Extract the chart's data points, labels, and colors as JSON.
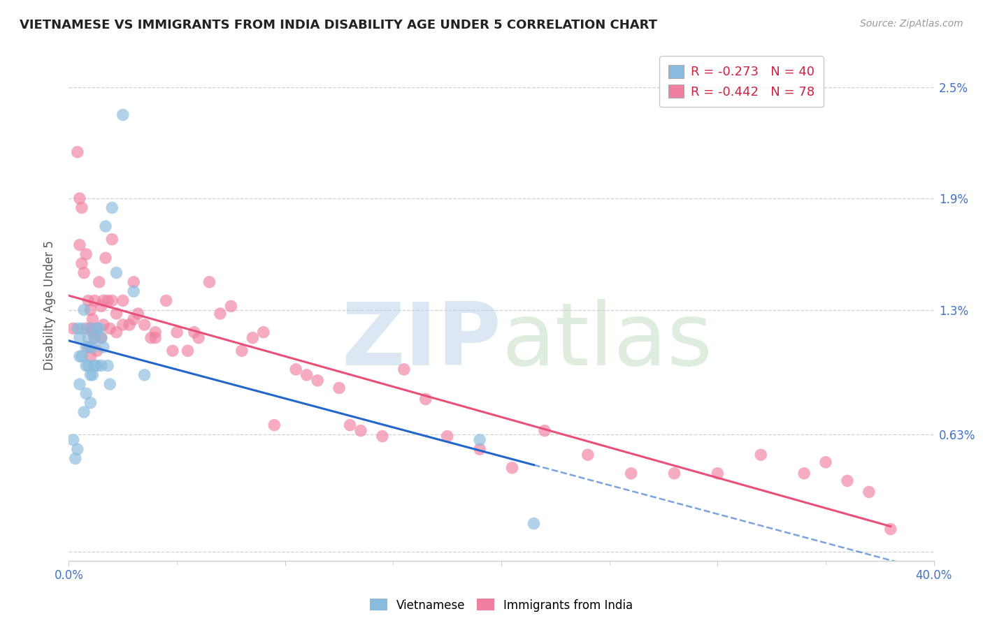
{
  "title": "VIETNAMESE VS IMMIGRANTS FROM INDIA DISABILITY AGE UNDER 5 CORRELATION CHART",
  "source": "Source: ZipAtlas.com",
  "ylabel": "Disability Age Under 5",
  "xlim": [
    0.0,
    0.4
  ],
  "ylim": [
    -0.0005,
    0.027
  ],
  "ytick_positions": [
    0.0,
    0.0063,
    0.013,
    0.019,
    0.025
  ],
  "ytick_labels": [
    "",
    "0.63%",
    "1.3%",
    "1.9%",
    "2.5%"
  ],
  "xtick_positions": [
    0.0,
    0.1,
    0.2,
    0.3,
    0.4
  ],
  "xtick_labels_visible": [
    "0.0%",
    "",
    "",
    "",
    "40.0%"
  ],
  "xtick_minor_positions": [
    0.05,
    0.1,
    0.15,
    0.2,
    0.25,
    0.3,
    0.35
  ],
  "color_viet": "#88bbdd",
  "color_india": "#f080a0",
  "color_blue_axis": "#4472c4",
  "color_pink_line": "#e8507a",
  "color_blue_line": "#2266cc",
  "background_color": "#ffffff",
  "grid_color": "#cccccc",
  "viet_x": [
    0.002,
    0.003,
    0.004,
    0.004,
    0.005,
    0.005,
    0.005,
    0.006,
    0.006,
    0.007,
    0.007,
    0.008,
    0.008,
    0.008,
    0.009,
    0.009,
    0.01,
    0.01,
    0.01,
    0.01,
    0.011,
    0.011,
    0.012,
    0.012,
    0.013,
    0.013,
    0.014,
    0.015,
    0.015,
    0.016,
    0.017,
    0.018,
    0.019,
    0.02,
    0.022,
    0.025,
    0.03,
    0.035,
    0.19,
    0.215
  ],
  "viet_y": [
    0.006,
    0.005,
    0.012,
    0.0055,
    0.0115,
    0.0105,
    0.009,
    0.012,
    0.0105,
    0.013,
    0.0075,
    0.011,
    0.01,
    0.0085,
    0.0115,
    0.01,
    0.012,
    0.011,
    0.0095,
    0.008,
    0.011,
    0.0095,
    0.0115,
    0.01,
    0.012,
    0.01,
    0.012,
    0.0115,
    0.01,
    0.011,
    0.0175,
    0.01,
    0.009,
    0.0185,
    0.015,
    0.0235,
    0.014,
    0.0095,
    0.006,
    0.0015
  ],
  "india_x": [
    0.002,
    0.004,
    0.005,
    0.005,
    0.006,
    0.006,
    0.007,
    0.008,
    0.008,
    0.009,
    0.009,
    0.01,
    0.01,
    0.01,
    0.011,
    0.011,
    0.012,
    0.012,
    0.013,
    0.013,
    0.014,
    0.015,
    0.015,
    0.016,
    0.016,
    0.017,
    0.018,
    0.019,
    0.02,
    0.02,
    0.022,
    0.022,
    0.025,
    0.025,
    0.028,
    0.03,
    0.03,
    0.032,
    0.035,
    0.038,
    0.04,
    0.045,
    0.05,
    0.055,
    0.06,
    0.065,
    0.075,
    0.085,
    0.095,
    0.105,
    0.115,
    0.125,
    0.135,
    0.145,
    0.155,
    0.165,
    0.175,
    0.19,
    0.205,
    0.22,
    0.24,
    0.26,
    0.28,
    0.3,
    0.32,
    0.34,
    0.35,
    0.36,
    0.37,
    0.38,
    0.04,
    0.048,
    0.058,
    0.07,
    0.08,
    0.09,
    0.11,
    0.13
  ],
  "india_y": [
    0.012,
    0.0215,
    0.0165,
    0.019,
    0.0155,
    0.0185,
    0.015,
    0.016,
    0.012,
    0.0135,
    0.011,
    0.013,
    0.012,
    0.0105,
    0.0125,
    0.0118,
    0.0135,
    0.0115,
    0.012,
    0.0108,
    0.0145,
    0.0132,
    0.0115,
    0.0135,
    0.0122,
    0.0158,
    0.0135,
    0.012,
    0.0168,
    0.0135,
    0.0128,
    0.0118,
    0.0135,
    0.0122,
    0.0122,
    0.0145,
    0.0125,
    0.0128,
    0.0122,
    0.0115,
    0.0118,
    0.0135,
    0.0118,
    0.0108,
    0.0115,
    0.0145,
    0.0132,
    0.0115,
    0.0068,
    0.0098,
    0.0092,
    0.0088,
    0.0065,
    0.0062,
    0.0098,
    0.0082,
    0.0062,
    0.0055,
    0.0045,
    0.0065,
    0.0052,
    0.0042,
    0.0042,
    0.0042,
    0.0052,
    0.0042,
    0.0048,
    0.0038,
    0.0032,
    0.0012,
    0.0115,
    0.0108,
    0.0118,
    0.0128,
    0.0108,
    0.0118,
    0.0095,
    0.0068
  ]
}
